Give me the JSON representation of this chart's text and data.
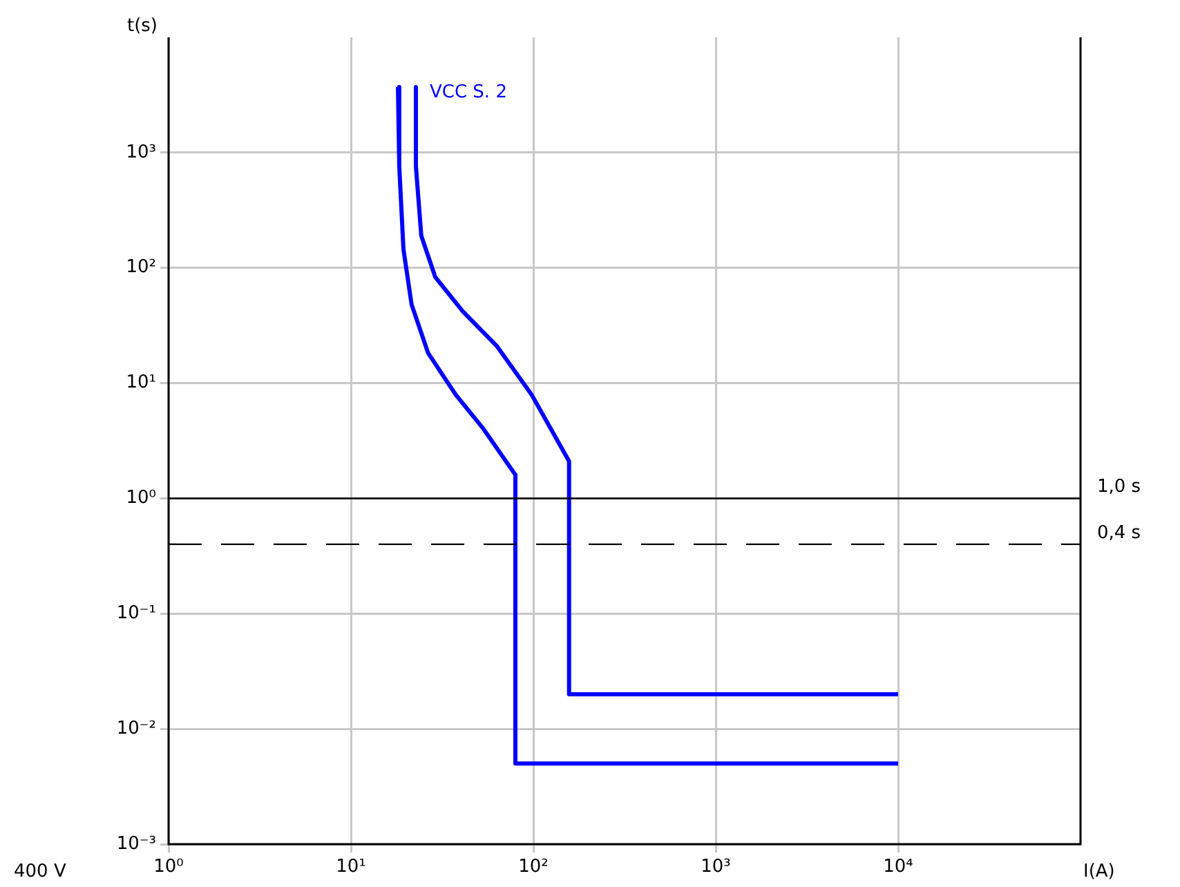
{
  "chart_data": {
    "type": "line",
    "xlabel": "I(A)",
    "ylabel": "t(s)",
    "log": "xy",
    "grid": true,
    "legend": false,
    "marker": "none",
    "line_style": "solid",
    "xlim": [
      1,
      100000
    ],
    "xticks": [
      {
        "value": 1,
        "label": "10⁰"
      },
      {
        "value": 10,
        "label": "10¹"
      },
      {
        "value": 100,
        "label": "10²"
      },
      {
        "value": 1000,
        "label": "10³"
      },
      {
        "value": 10000,
        "label": "10⁴"
      }
    ],
    "ylim": [
      0.001,
      10000
    ],
    "yticks": [
      {
        "value": 0.001,
        "label": "10⁻³"
      },
      {
        "value": 0.01,
        "label": "10⁻²"
      },
      {
        "value": 0.1,
        "label": "10⁻¹"
      },
      {
        "value": 1,
        "label": "10⁰"
      },
      {
        "value": 10,
        "label": "10¹"
      },
      {
        "value": 100,
        "label": "10²"
      },
      {
        "value": 1000,
        "label": "10³"
      }
    ],
    "series": [
      {
        "color": "#0000ff",
        "x": [
          18.1,
          18.4,
          19.4,
          21.5,
          26.5,
          37.6,
          53.3,
          79.7,
          79.7,
          10000
        ],
        "values": [
          3700,
          760,
          145,
          48,
          18.2,
          7.9,
          4.0,
          1.6,
          0.005,
          0.005
        ]
      },
      {
        "name": "VCC S. 2",
        "color": "#0000ff",
        "x": [
          22.7,
          22.7,
          24.3,
          29,
          41,
          63,
          98,
          157,
          157,
          10000
        ],
        "values": [
          3700,
          760,
          190,
          83,
          42,
          21,
          7.9,
          2.1,
          0.02,
          0.02
        ]
      }
    ],
    "ref_lines": [
      {
        "axis": "y",
        "value": 1,
        "label": "1,0 s",
        "color": "#000000",
        "line_style": "solid"
      },
      {
        "axis": "y",
        "value": 0.4,
        "label": "0,4 s",
        "color": "#000000",
        "line_style": "dashed"
      }
    ],
    "annotations": [
      "400 V"
    ]
  }
}
